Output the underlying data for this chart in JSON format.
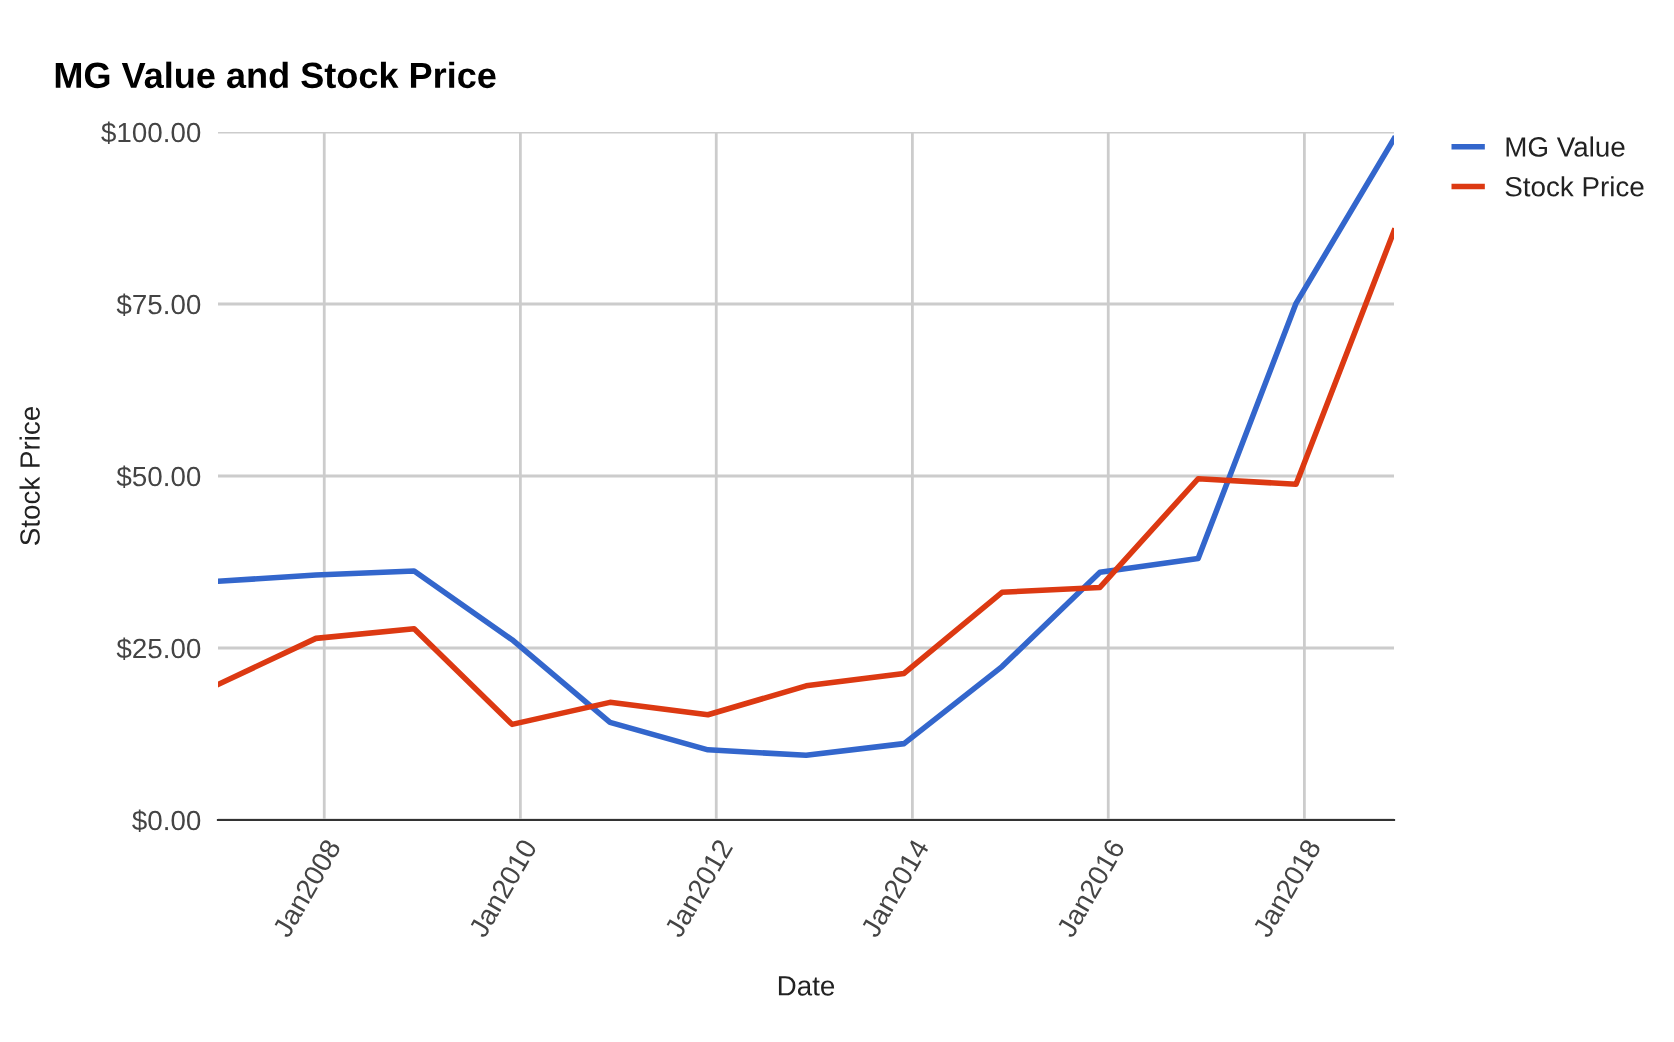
{
  "chart_data": {
    "type": "line",
    "title": "MG Value and Stock Price",
    "xlabel": "Date",
    "ylabel": "Stock Price",
    "x": [
      "2006-12",
      "2007-12",
      "2008-12",
      "2009-12",
      "2010-12",
      "2011-12",
      "2012-12",
      "2013-12",
      "2014-12",
      "2015-12",
      "2016-12",
      "2017-12",
      "2018-12"
    ],
    "series": [
      {
        "name": "MG Value",
        "color": "#3366cc",
        "values": [
          34.7,
          35.6,
          36.2,
          26.2,
          14.2,
          10.2,
          9.4,
          11.1,
          22.3,
          36.0,
          38.0,
          75.1,
          99.0
        ]
      },
      {
        "name": "Stock Price",
        "color": "#dc3912",
        "values": [
          19.7,
          26.4,
          27.8,
          13.9,
          17.1,
          15.3,
          19.5,
          21.3,
          33.1,
          33.8,
          49.6,
          48.8,
          85.6
        ]
      }
    ],
    "xlim": [
      "2006-12",
      "2018-12"
    ],
    "xticks": [
      {
        "value": "2008-01",
        "label": "Jan2008"
      },
      {
        "value": "2010-01",
        "label": "Jan2010"
      },
      {
        "value": "2012-01",
        "label": "Jan2012"
      },
      {
        "value": "2014-01",
        "label": "Jan2014"
      },
      {
        "value": "2016-01",
        "label": "Jan2016"
      },
      {
        "value": "2018-01",
        "label": "Jan2018"
      }
    ],
    "ylim": [
      0,
      100
    ],
    "yticks": [
      {
        "value": 0,
        "label": "$0.00"
      },
      {
        "value": 25,
        "label": "$25.00"
      },
      {
        "value": 50,
        "label": "$50.00"
      },
      {
        "value": 75,
        "label": "$75.00"
      },
      {
        "value": 100,
        "label": "$100.00"
      }
    ],
    "grid": true,
    "legend": "top right",
    "marker": "none",
    "line_style": "solid"
  }
}
